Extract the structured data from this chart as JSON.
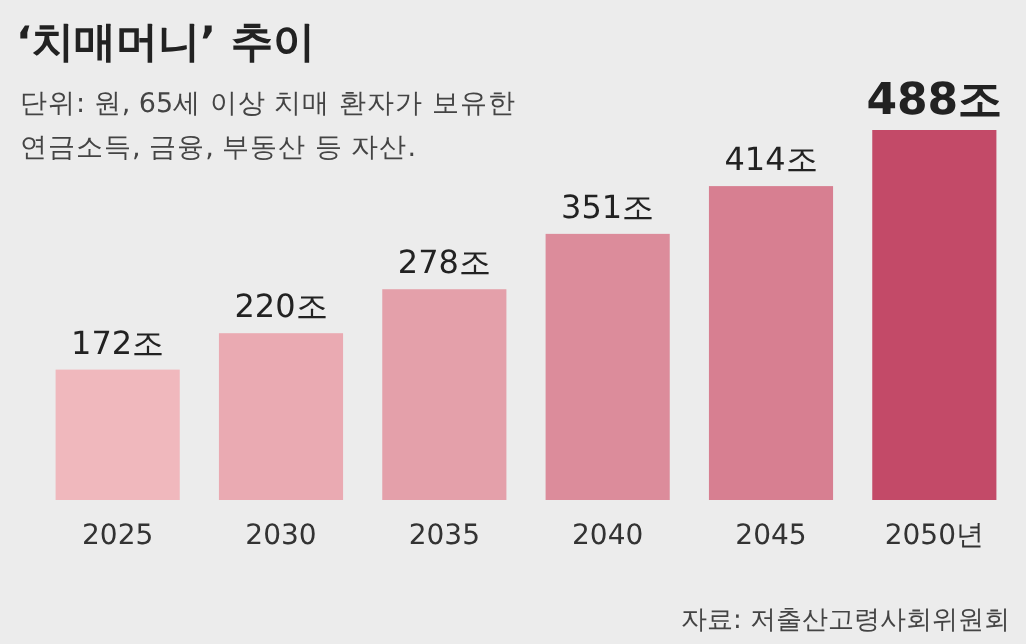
{
  "chart_data": {
    "type": "bar",
    "title": "‘치매머니’ 추이",
    "subtitle": "단위: 원, 65세 이상 치매 환자가 보유한 연금소득, 금융, 부동산 등 자산.",
    "categories": [
      "2025",
      "2030",
      "2035",
      "2040",
      "2045",
      "2050년"
    ],
    "values": [
      172,
      220,
      278,
      351,
      414,
      488
    ],
    "value_labels": [
      "172조",
      "220조",
      "278조",
      "351조",
      "414조",
      "488조"
    ],
    "colors": [
      "#f0b8bd",
      "#eaaab2",
      "#e4a0aa",
      "#dc8c9b",
      "#d77f91",
      "#c34a68"
    ],
    "annotations": [
      "자료: 저출산고령사회위원회"
    ]
  }
}
